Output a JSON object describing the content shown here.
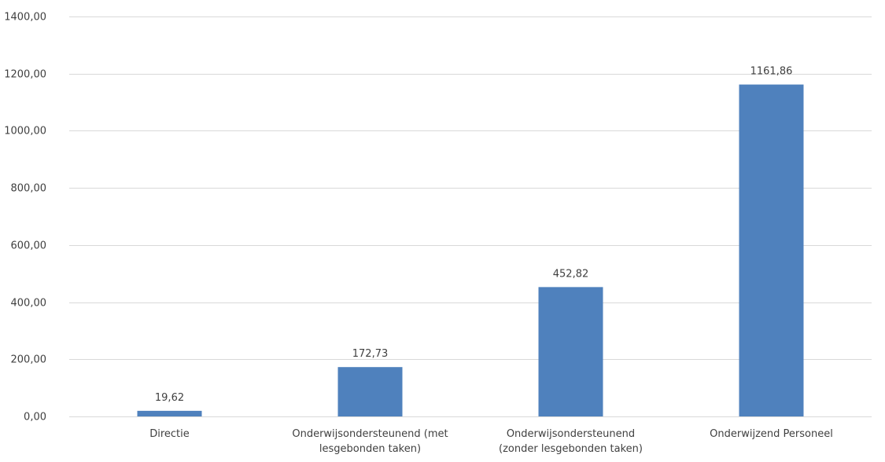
{
  "chart_data": {
    "type": "bar",
    "categories": [
      [
        "Directie"
      ],
      [
        "Onderwijsondersteunend (met",
        "lesgebonden taken)"
      ],
      [
        "Onderwijsondersteunend",
        "(zonder lesgebonden taken)"
      ],
      [
        "Onderwijzend Personeel"
      ]
    ],
    "values": [
      19.62,
      172.73,
      452.82,
      1161.86
    ],
    "data_labels": [
      "19,62",
      "172,73",
      "452,82",
      "1161,86"
    ],
    "title": "",
    "xlabel": "",
    "ylabel": "",
    "ylim": [
      0,
      1400
    ],
    "y_ticks": [
      0,
      200,
      400,
      600,
      800,
      1000,
      1200,
      1400
    ],
    "y_tick_labels": [
      "0,00",
      "200,00",
      "400,00",
      "600,00",
      "800,00",
      "1000,00",
      "1200,00",
      "1400,00"
    ],
    "grid": true,
    "legend": "none",
    "bar_color": "#4f81bd",
    "grid_color": "#d9d9d9",
    "text_color": "#404040"
  }
}
